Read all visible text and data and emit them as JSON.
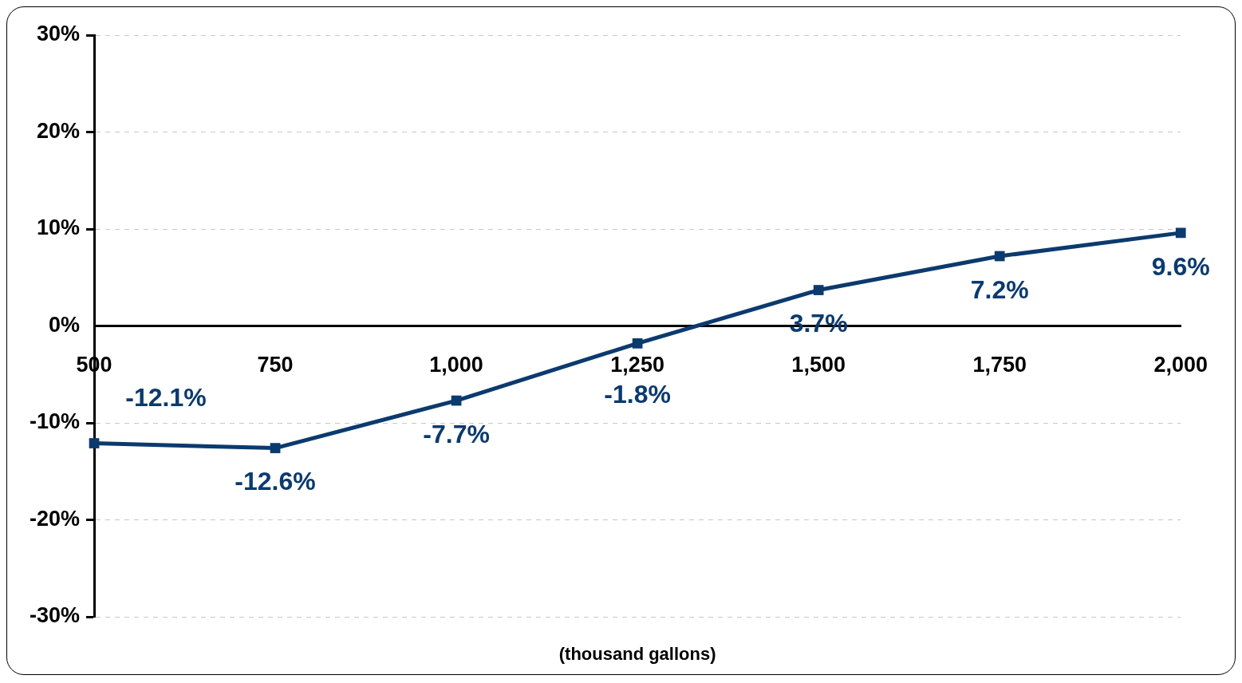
{
  "chart_data": {
    "type": "line",
    "xlabel": "(thousand gallons)",
    "x": [
      500,
      750,
      1000,
      1250,
      1500,
      1750,
      2000
    ],
    "values": [
      -12.1,
      -12.6,
      -7.7,
      -1.8,
      3.7,
      7.2,
      9.6
    ],
    "value_labels": [
      "-12.1%",
      "-12.6%",
      "-7.7%",
      "-1.8%",
      "3.7%",
      "7.2%",
      "9.6%"
    ],
    "color": "#0b3a6e",
    "marker": "square",
    "line_style": "solid",
    "grid": "y",
    "legend": false,
    "xlim": [
      500,
      2000
    ],
    "xticks": [
      500,
      750,
      {
        "value": 1000,
        "label": "1,000"
      },
      {
        "value": 1250,
        "label": "1,250"
      },
      {
        "value": 1500,
        "label": "1,500"
      },
      {
        "value": 1750,
        "label": "1,750"
      },
      {
        "value": 2000,
        "label": "2,000"
      }
    ],
    "ylim": [
      -30,
      30
    ],
    "yticks": [
      {
        "value": -30,
        "label": "-30%"
      },
      {
        "value": -20,
        "label": "-20%"
      },
      {
        "value": -10,
        "label": "-10%"
      },
      {
        "value": 0,
        "label": "0%"
      },
      {
        "value": 10,
        "label": "10%"
      },
      {
        "value": 20,
        "label": "20%"
      },
      {
        "value": 30,
        "label": "30%"
      }
    ]
  }
}
